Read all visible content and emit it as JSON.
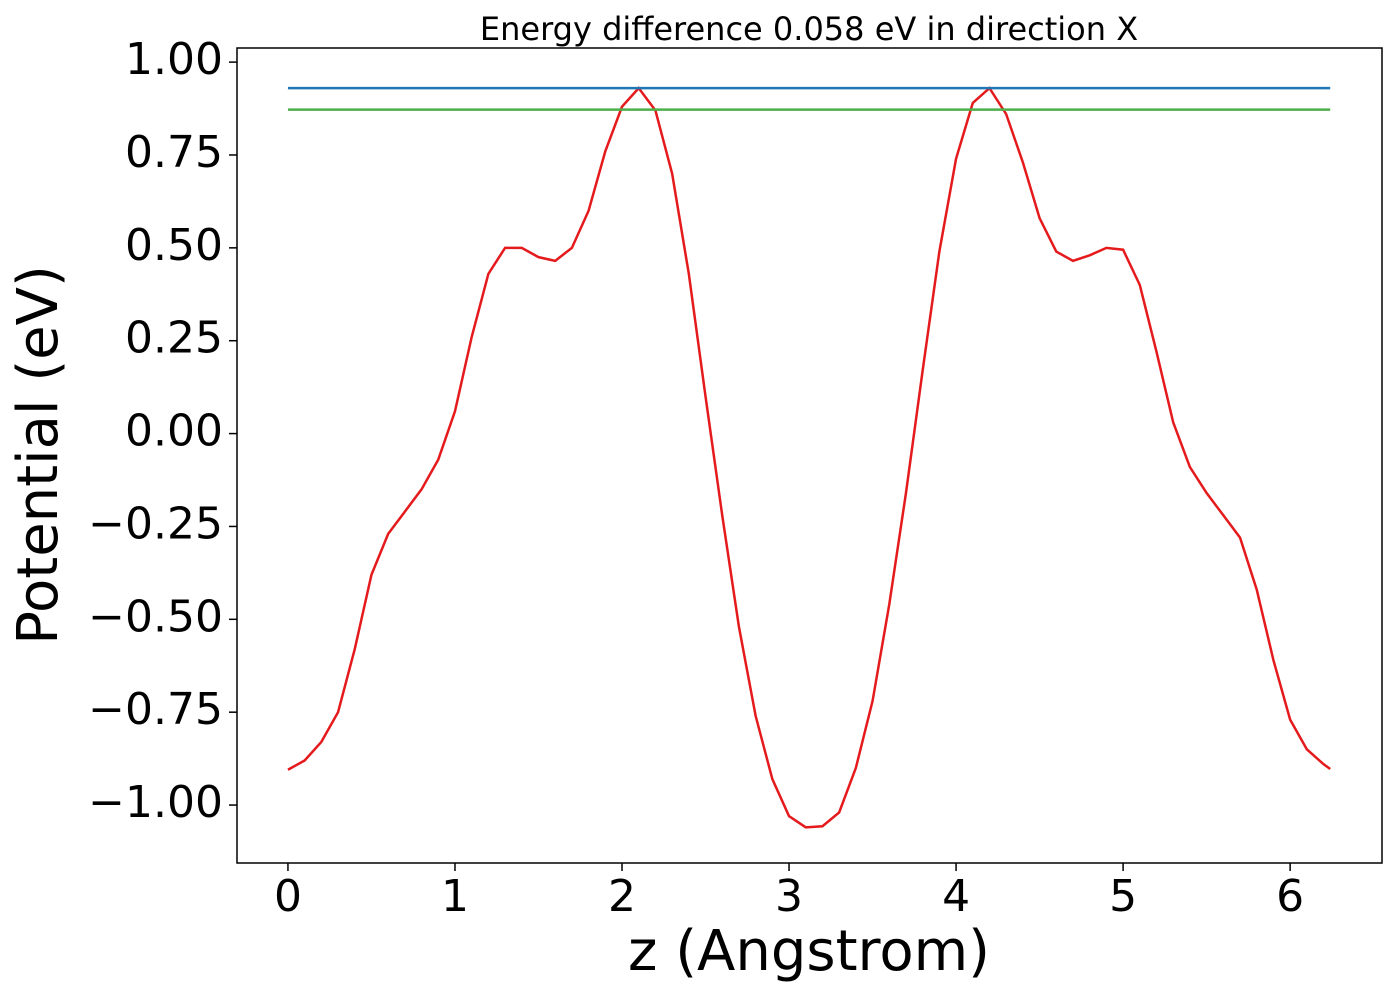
{
  "chart_data": {
    "type": "line",
    "title": "Energy difference 0.058 eV in direction X",
    "x_label": "z (Angstrom)",
    "y_label": "Potential (eV)",
    "xlim": [
      -0.305,
      6.55
    ],
    "ylim": [
      -1.156,
      1.038
    ],
    "xticks": [
      0,
      1,
      2,
      3,
      4,
      5,
      6
    ],
    "yticks": [
      {
        "value": -1,
        "label": "−1.00"
      },
      {
        "value": -0.75,
        "label": "−0.75"
      },
      {
        "value": -0.5,
        "label": "−0.50"
      },
      {
        "value": -0.25,
        "label": "−0.25"
      },
      {
        "value": 0,
        "label": "0.00"
      },
      {
        "value": 0.25,
        "label": "0.25"
      },
      {
        "value": 0.5,
        "label": "0.50"
      },
      {
        "value": 0.75,
        "label": "0.75"
      },
      {
        "value": 1,
        "label": "1.00"
      }
    ],
    "grid": false,
    "series": [
      {
        "color": "#e41a1c",
        "x": [
          0,
          0.1,
          0.2,
          0.3,
          0.4,
          0.5,
          0.6,
          0.7,
          0.8,
          0.9,
          1.0,
          1.1,
          1.2,
          1.3,
          1.4,
          1.5,
          1.6,
          1.7,
          1.8,
          1.9,
          2.0,
          2.1,
          2.2,
          2.3,
          2.4,
          2.5,
          2.6,
          2.7,
          2.8,
          2.9,
          3.0,
          3.1,
          3.2,
          3.3,
          3.4,
          3.5,
          3.6,
          3.7,
          3.8,
          3.9,
          4.0,
          4.1,
          4.2,
          4.3,
          4.4,
          4.5,
          4.6,
          4.7,
          4.8,
          4.9,
          5.0,
          5.1,
          5.2,
          5.3,
          5.4,
          5.5,
          5.6,
          5.7,
          5.8,
          5.9,
          6.0,
          6.1,
          6.2,
          6.24
        ],
        "values": [
          -0.905,
          -0.88,
          -0.83,
          -0.75,
          -0.58,
          -0.38,
          -0.27,
          -0.21,
          -0.15,
          -0.07,
          0.06,
          0.26,
          0.43,
          0.5,
          0.5,
          0.475,
          0.465,
          0.5,
          0.6,
          0.76,
          0.88,
          0.93,
          0.87,
          0.7,
          0.43,
          0.1,
          -0.22,
          -0.52,
          -0.76,
          -0.93,
          -1.03,
          -1.06,
          -1.057,
          -1.02,
          -0.9,
          -0.72,
          -0.46,
          -0.16,
          0.17,
          0.49,
          0.74,
          0.89,
          0.93,
          0.86,
          0.73,
          0.58,
          0.49,
          0.465,
          0.48,
          0.5,
          0.495,
          0.4,
          0.22,
          0.03,
          -0.09,
          -0.16,
          -0.22,
          -0.28,
          -0.42,
          -0.61,
          -0.77,
          -0.85,
          -0.89,
          -0.903
        ]
      },
      {
        "color": "#1f77b4",
        "x": [
          0,
          6.24
        ],
        "values": [
          0.93,
          0.93
        ]
      },
      {
        "color": "#4daf4a",
        "x": [
          0,
          6.24
        ],
        "values": [
          0.872,
          0.872
        ]
      }
    ]
  }
}
